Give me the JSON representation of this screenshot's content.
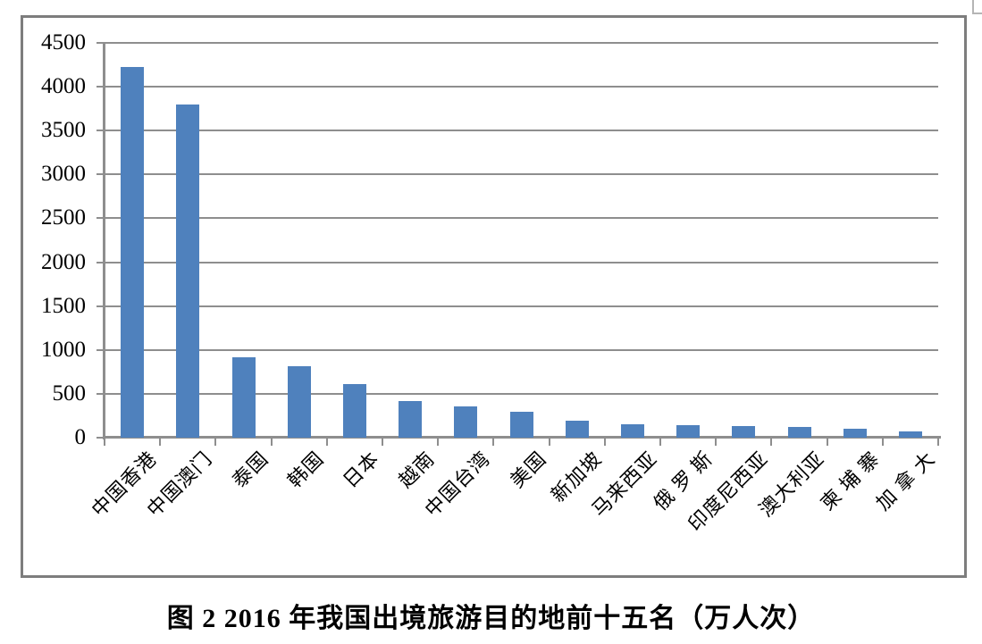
{
  "figure": {
    "caption": "图 2 2016 年我国出境旅游目的地前十五名（万人次）"
  },
  "chart_data": {
    "type": "bar",
    "title": "图 2 2016 年我国出境旅游目的地前十五名（万人次）",
    "unit": "万人次",
    "categories": [
      "中国香港",
      "中国澳门",
      "泰国",
      "韩国",
      "日本",
      "越南",
      "中国台湾",
      "美国",
      "新加坡",
      "马来西亚",
      "俄 罗 斯",
      "印度尼西亚",
      "澳大利亚",
      "柬 埔 寨",
      "加 拿 大"
    ],
    "values": [
      4225,
      3800,
      920,
      810,
      610,
      415,
      355,
      300,
      195,
      155,
      145,
      135,
      125,
      105,
      75
    ],
    "xlabel": "",
    "ylabel": "",
    "ylim": [
      0,
      4500
    ],
    "ytick_step": 500,
    "ytick_labels": [
      "4500",
      "4000",
      "3500",
      "3000",
      "2500",
      "2000",
      "1500",
      "1000",
      "500",
      "0"
    ],
    "grid": true,
    "legend": "none",
    "colors": {
      "bar": "#4f81bd",
      "gridline": "#8e8e8e",
      "axis": "#8e8e8e",
      "frame": "#7d7d7d",
      "text": "#000000"
    }
  }
}
